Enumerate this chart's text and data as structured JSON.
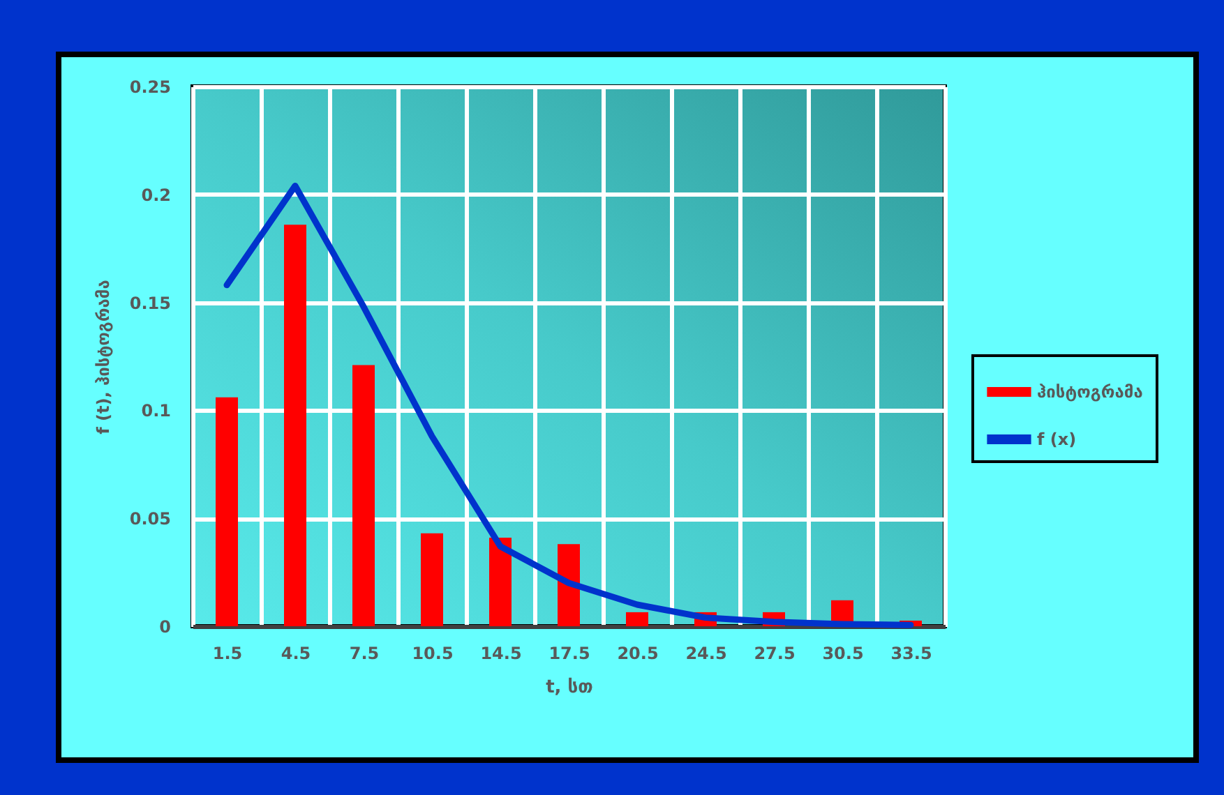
{
  "chart_data": {
    "type": "bar",
    "xlabel": "t, სთ",
    "ylabel": "f (t), ჰისტოგრამა",
    "categories": [
      "1.5",
      "4.5",
      "7.5",
      "10.5",
      "14.5",
      "17.5",
      "20.5",
      "24.5",
      "27.5",
      "30.5",
      "33.5"
    ],
    "series": [
      {
        "name": "ჰისტოგრამა",
        "color": "#ff0000",
        "values": [
          0.106,
          0.186,
          0.121,
          0.043,
          0.041,
          0.038,
          0.0065,
          0.0065,
          0.0065,
          0.012,
          0.0026
        ]
      },
      {
        "name": "f (x)",
        "type": "line",
        "color": "#0033cc",
        "values": [
          0.158,
          0.204,
          0.148,
          0.088,
          0.037,
          0.02,
          0.01,
          0.004,
          0.002,
          0.001,
          0.0006
        ]
      }
    ],
    "ylim": [
      0,
      0.25
    ],
    "yticks": [
      0,
      0.05,
      0.1,
      0.15,
      0.2,
      0.25
    ],
    "grid": true,
    "legend": "right"
  }
}
